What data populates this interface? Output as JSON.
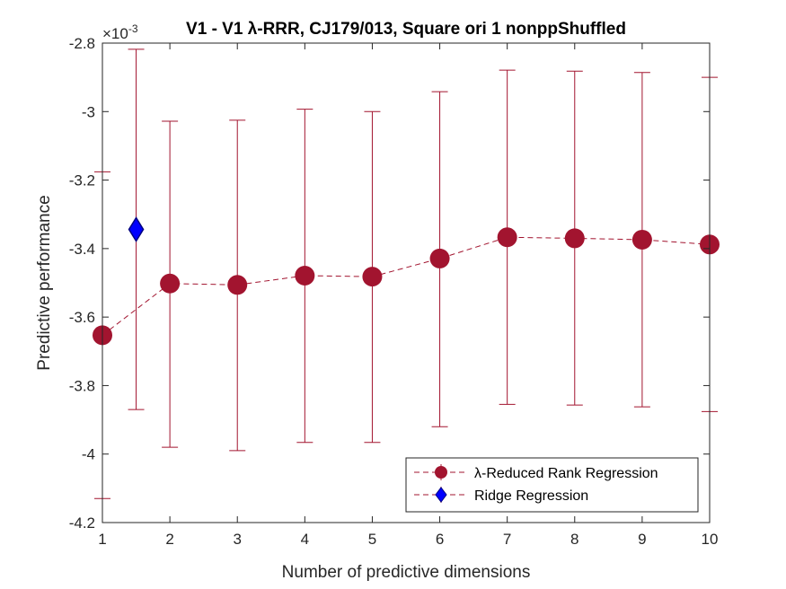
{
  "chart_data": {
    "type": "line",
    "title": "V1 - V1 λ-RRR, CJ179/013, Square ori 1 nonppShuffled",
    "xlabel": "Number of predictive dimensions",
    "ylabel": "Predictive performance",
    "exponent_label": "×10",
    "exponent_power": "-3",
    "xlim": [
      1,
      10
    ],
    "ylim": [
      -4.2,
      -2.8
    ],
    "x_ticks": [
      1,
      2,
      3,
      4,
      5,
      6,
      7,
      8,
      9,
      10
    ],
    "y_ticks": [
      -2.8,
      -3,
      -3.2,
      -3.4,
      -3.6,
      -3.8,
      -4,
      -4.2
    ],
    "y_tick_labels": [
      "-2.8",
      "-3",
      "-3.2",
      "-3.4",
      "-3.6",
      "-3.8",
      "-4",
      "-4.2"
    ],
    "grid": false,
    "legend_position": "bottom-right",
    "series": [
      {
        "name": "λ-Reduced Rank Regression",
        "color": "#a2142f",
        "marker": "circle",
        "line_style": "dashed",
        "x": [
          1,
          2,
          3,
          4,
          5,
          6,
          7,
          8,
          9,
          10
        ],
        "y": [
          -3.653,
          -3.502,
          -3.506,
          -3.479,
          -3.482,
          -3.429,
          -3.367,
          -3.37,
          -3.374,
          -3.388
        ],
        "err_low": [
          -4.13,
          -3.98,
          -3.99,
          -3.966,
          -3.966,
          -3.92,
          -3.855,
          -3.857,
          -3.862,
          -3.876
        ],
        "err_high": [
          -3.176,
          -3.028,
          -3.025,
          -2.993,
          -3.0,
          -2.942,
          -2.879,
          -2.882,
          -2.886,
          -2.9
        ]
      },
      {
        "name": "Ridge Regression",
        "color": "#0000ff",
        "edge_color": "#000080",
        "marker": "diamond",
        "x": [
          1.5
        ],
        "y": [
          -3.344
        ],
        "err_low": [
          -3.87
        ],
        "err_high": [
          -2.818
        ]
      }
    ]
  }
}
